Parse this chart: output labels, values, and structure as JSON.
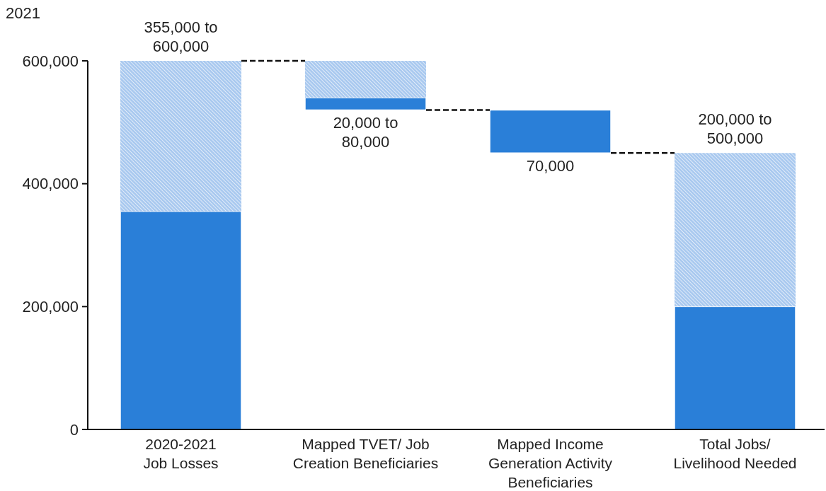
{
  "chart_data": {
    "type": "bar",
    "ylabel": "2021",
    "categories": [
      "2020-2021\nJob Losses",
      "Mapped TVET/ Job\nCreation Beneficiaries",
      "Mapped Income\nGeneration Activity\nBeneficiaries",
      "Total Jobs/\nLivelihood Needed"
    ],
    "series": [
      {
        "color": "#2a7fd8",
        "base": [
          0,
          520000,
          450000,
          0
        ],
        "values": [
          355000,
          20000,
          70000,
          200000
        ]
      },
      {
        "color": "#a9c9ef",
        "base": [
          355000,
          540000,
          null,
          200000
        ],
        "values": [
          245000,
          60000,
          null,
          250000
        ]
      }
    ],
    "totals": [
      "355,000 to\n600,000",
      "20,000 to\n80,000",
      "70,000",
      "200,000 to\n500,000"
    ],
    "ylim": [
      0,
      600000
    ],
    "yticks": [
      {
        "value": 0,
        "label": "0"
      },
      {
        "value": 200000,
        "label": "200,000"
      },
      {
        "value": 400000,
        "label": "400,000"
      },
      {
        "value": 600000,
        "label": "600,000"
      }
    ]
  }
}
